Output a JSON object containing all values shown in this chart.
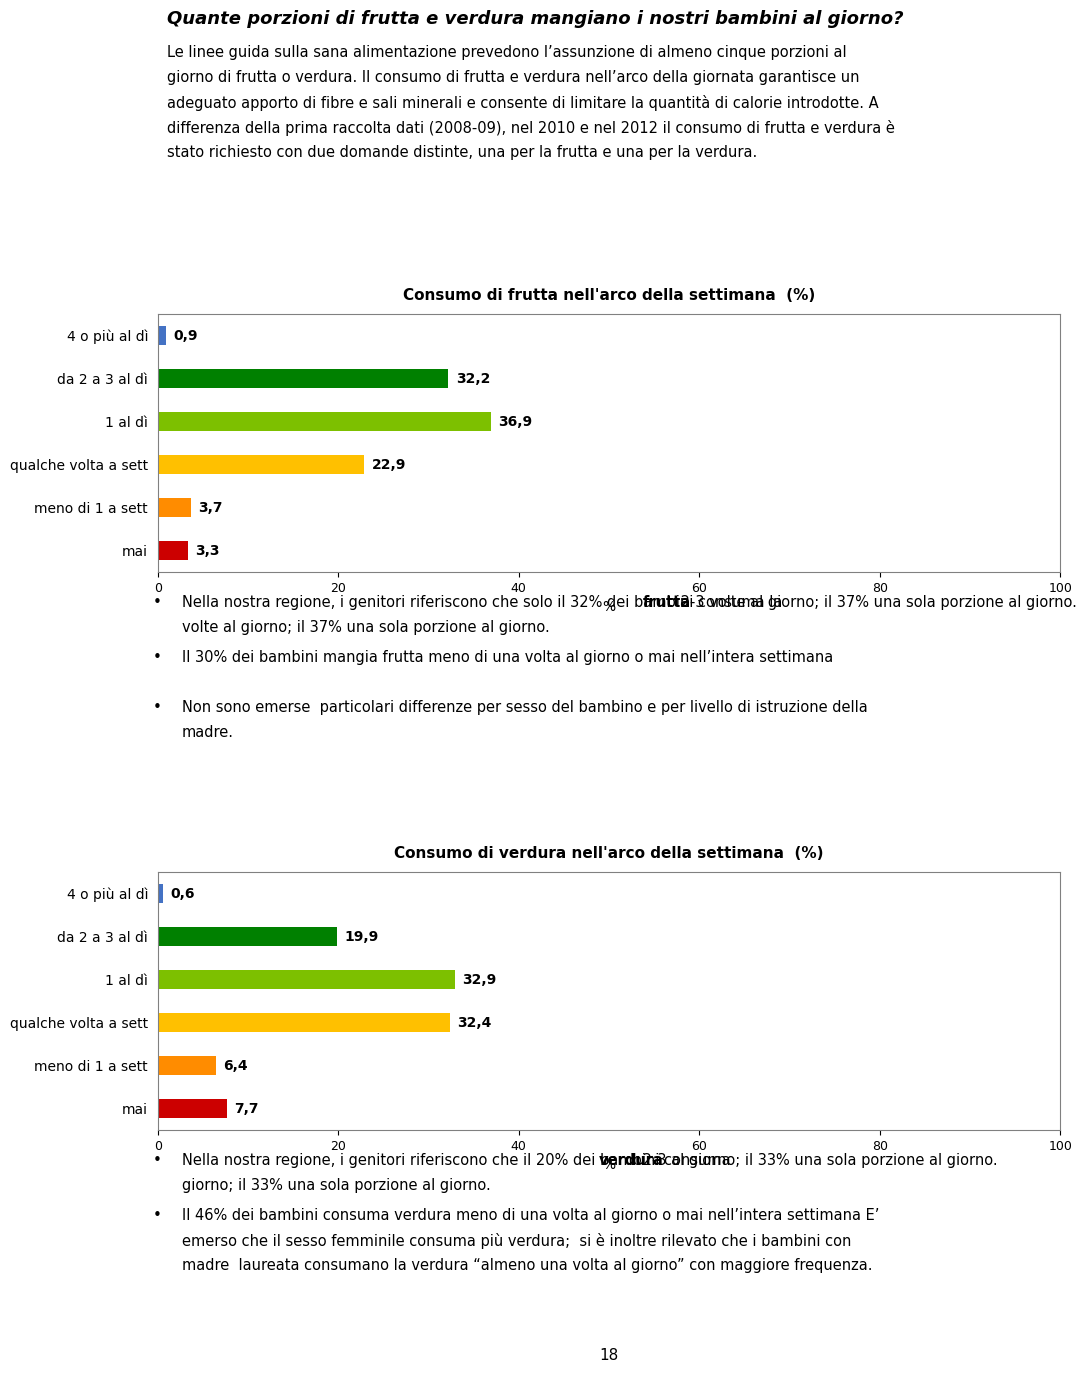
{
  "title": "Quante porzioni di frutta e verdura mangiano i nostri bambini al giorno?",
  "intro_text": "Le linee guida sulla sana alimentazione prevedono l’assunzione di almeno cinque porzioni al giorno di frutta o verdura. Il consumo di frutta e verdura nell’arco della giornata garantisce un adeguato apporto di fibre e sali minerali e consente di limitare la quantità di calorie introdotte. A differenza della prima raccolta dati (2008-09), nel 2010 e nel 2012 il consumo di frutta e verdura è stato richiesto con due domande distinte, una per la frutta e una per la verdura.",
  "chart1_title": "Consumo di frutta nell'arco della settimana  (%)",
  "chart1_categories": [
    "4 o più al dì",
    "da 2 a 3 al dì",
    "1 al dì",
    "qualche volta a sett",
    "meno di 1 a sett",
    "mai"
  ],
  "chart1_values": [
    0.9,
    32.2,
    36.9,
    22.9,
    3.7,
    3.3
  ],
  "chart1_colors": [
    "#4472C4",
    "#008000",
    "#7DC000",
    "#FFC000",
    "#FF8C00",
    "#CC0000"
  ],
  "chart2_title": "Consumo di verdura nell'arco della settimana  (%)",
  "chart2_categories": [
    "4 o più al dì",
    "da 2 a 3 al dì",
    "1 al dì",
    "qualche volta a sett",
    "meno di 1 a sett",
    "mai"
  ],
  "chart2_values": [
    0.6,
    19.9,
    32.9,
    32.4,
    6.4,
    7.7
  ],
  "chart2_colors": [
    "#4472C4",
    "#008000",
    "#7DC000",
    "#FFC000",
    "#FF8C00",
    "#CC0000"
  ],
  "xlabel": "%",
  "xlim": [
    0,
    100
  ],
  "xticks": [
    0,
    20,
    40,
    60,
    80,
    100
  ],
  "page_number": "18",
  "background_color": "#ffffff",
  "chart_bg_color": "#ffffff",
  "chart_border_color": "#808080",
  "bullet1_pre1": "Nella nostra regione, i genitori riferiscono che solo il 32% dei bambini consuma la ",
  "bullet1_bold1": "frutta",
  "bullet1_post1": " 2-3 volte al giorno; il 37% una sola porzione al giorno.",
  "bullet1_line2": "Il 30% dei bambini mangia frutta meno di una volta al giorno o mai nell’intera settimana",
  "bullet1_line3a": "Non sono emerse  particolari differenze per sesso del bambino e per livello di istruzione della",
  "bullet1_line3b": "madre.",
  "bullet2_pre1": "Nella nostra regione, i genitori riferiscono che il 20% dei bambini consuma ",
  "bullet2_bold1": "verdura",
  "bullet2_post1": " 2-3 al giorno; il 33% una sola porzione al giorno.",
  "bullet2_line2a": "Il 46% dei bambini consuma verdura meno di una volta al giorno o mai nell’intera settimana E’",
  "bullet2_line2b": "emerso che il sesso femminile consuma più verdura;  si è inoltre rilevato che i bambini con",
  "bullet2_line2c": "madre  laureata consumano la verdura “almeno una volta al giorno” con maggiore frequenza."
}
